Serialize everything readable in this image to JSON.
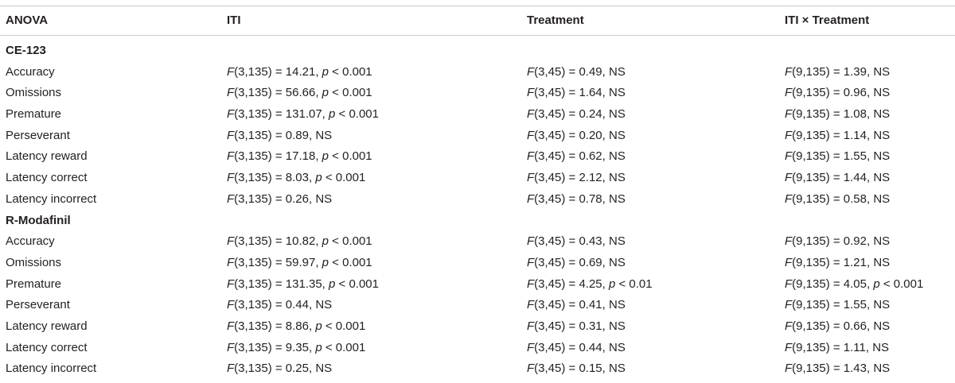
{
  "header": {
    "col0": "ANOVA",
    "col1": "ITI",
    "col2": "Treatment",
    "col3": "ITI × Treatment"
  },
  "sections": [
    {
      "title": "CE-123",
      "rows": [
        {
          "label": "Accuracy",
          "iti": [
            "(3,135) = 14.21, ",
            "p",
            " < 0.001"
          ],
          "treatment": [
            "(3,45) = 0.49, NS"
          ],
          "interaction": [
            "(9,135) = 1.39, NS"
          ]
        },
        {
          "label": "Omissions",
          "iti": [
            "(3,135) = 56.66, ",
            "p",
            " < 0.001"
          ],
          "treatment": [
            "(3,45) = 1.64, NS"
          ],
          "interaction": [
            "(9,135) = 0.96, NS"
          ]
        },
        {
          "label": "Premature",
          "iti": [
            "(3,135) = 131.07, ",
            "p",
            " < 0.001"
          ],
          "treatment": [
            "(3,45) = 0.24, NS"
          ],
          "interaction": [
            "(9,135) = 1.08, NS"
          ]
        },
        {
          "label": "Perseverant",
          "iti": [
            "(3,135) = 0.89, NS"
          ],
          "treatment": [
            "(3,45) = 0.20, NS"
          ],
          "interaction": [
            "(9,135) = 1.14, NS"
          ]
        },
        {
          "label": "Latency reward",
          "iti": [
            "(3,135) = 17.18, ",
            "p",
            " < 0.001"
          ],
          "treatment": [
            "(3,45) = 0.62, NS"
          ],
          "interaction": [
            "(9,135) = 1.55, NS"
          ]
        },
        {
          "label": "Latency correct",
          "iti": [
            "(3,135) = 8.03, ",
            "p",
            " < 0.001"
          ],
          "treatment": [
            "(3,45) = 2.12, NS"
          ],
          "interaction": [
            "(9,135) = 1.44, NS"
          ]
        },
        {
          "label": "Latency incorrect",
          "iti": [
            "(3,135) = 0.26, NS"
          ],
          "treatment": [
            "(3,45) = 0.78, NS"
          ],
          "interaction": [
            "(9,135) = 0.58, NS"
          ]
        }
      ]
    },
    {
      "title": "R-Modafinil",
      "rows": [
        {
          "label": "Accuracy",
          "iti": [
            "(3,135) = 10.82, ",
            "p",
            " < 0.001"
          ],
          "treatment": [
            "(3,45) = 0.43, NS"
          ],
          "interaction": [
            "(9,135) = 0.92, NS"
          ]
        },
        {
          "label": "Omissions",
          "iti": [
            "(3,135) = 59.97, ",
            "p",
            " < 0.001"
          ],
          "treatment": [
            "(3,45) = 0.69, NS"
          ],
          "interaction": [
            "(9,135) = 1.21, NS"
          ]
        },
        {
          "label": "Premature",
          "iti": [
            "(3,135) = 131.35, ",
            "p",
            " < 0.001"
          ],
          "treatment": [
            "(3,45) = 4.25, ",
            "p",
            " < 0.01"
          ],
          "interaction": [
            "(9,135) = 4.05, ",
            "p",
            " < 0.001"
          ]
        },
        {
          "label": "Perseverant",
          "iti": [
            "(3,135) = 0.44, NS"
          ],
          "treatment": [
            "(3,45) = 0.41, NS"
          ],
          "interaction": [
            "(9,135) = 1.55, NS"
          ]
        },
        {
          "label": "Latency reward",
          "iti": [
            "(3,135) = 8.86, ",
            "p",
            " < 0.001"
          ],
          "treatment": [
            "(3,45) = 0.31, NS"
          ],
          "interaction": [
            "(9,135) = 0.66, NS"
          ]
        },
        {
          "label": "Latency correct",
          "iti": [
            "(3,135) = 9.35, ",
            "p",
            " < 0.001"
          ],
          "treatment": [
            "(3,45) = 0.44, NS"
          ],
          "interaction": [
            "(9,135) = 1.11, NS"
          ]
        },
        {
          "label": "Latency incorrect",
          "iti": [
            "(3,135) = 0.25, NS"
          ],
          "treatment": [
            "(3,45) = 0.15, NS"
          ],
          "interaction": [
            "(9,135) = 1.43, NS"
          ]
        }
      ]
    }
  ],
  "stat_symbol": "F",
  "colors": {
    "text": "#231f20",
    "rule": "#c8c8c8"
  }
}
